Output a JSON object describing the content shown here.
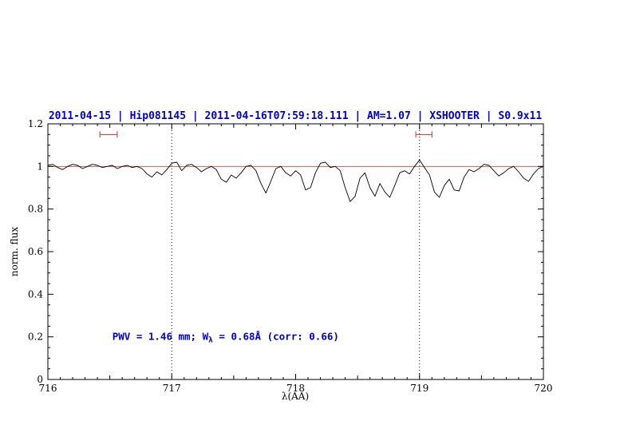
{
  "colors": {
    "background": "#ffffff",
    "title_blue": "#0000cc",
    "annotation_blue": "#0000cc",
    "spectrum_black": "#000000",
    "reference_red": "#cc4444",
    "marker_red": "#cc3333",
    "axis_black": "#000000"
  },
  "chart_data": {
    "type": "line",
    "title": "2011-04-15 | Hip081145 | 2011-04-16T07:59:18.111 | AM=1.07 | XSHOOTER | S0.9x11",
    "xlabel": "λ(AA)",
    "ylabel": "norm. flux",
    "xlim": [
      716,
      720
    ],
    "ylim": [
      0,
      1.2
    ],
    "x_ticks": [
      716,
      717,
      718,
      719,
      720
    ],
    "x_tick_labels": [
      "716",
      "717",
      "718",
      "719",
      "720"
    ],
    "x_minor_step": 0.1,
    "y_ticks": [
      0,
      0.2,
      0.4,
      0.6,
      0.8,
      1,
      1.2
    ],
    "y_tick_labels": [
      "0",
      "0.2",
      "0.4",
      "0.6",
      "0.8",
      "1",
      "1.2"
    ],
    "y_minor_step": 0.05,
    "grid": "off",
    "dotted_vlines": [
      717,
      719
    ],
    "reference_hline": 1.0,
    "series": [
      {
        "name": "normalized spectrum",
        "color": "#000000",
        "x_start": 716.0,
        "x_step": 0.04,
        "y": [
          1.005,
          1.01,
          0.995,
          0.985,
          1.0,
          1.01,
          1.005,
          0.99,
          1.0,
          1.01,
          1.005,
          0.995,
          1.0,
          1.005,
          0.99,
          1.0,
          1.005,
          0.995,
          1.0,
          0.99,
          0.965,
          0.95,
          0.975,
          0.96,
          0.985,
          1.015,
          1.02,
          0.98,
          1.005,
          1.01,
          0.995,
          0.975,
          0.99,
          1.0,
          0.985,
          0.94,
          0.925,
          0.96,
          0.945,
          0.97,
          1.0,
          1.005,
          0.98,
          0.92,
          0.875,
          0.93,
          0.99,
          1.0,
          0.97,
          0.955,
          0.98,
          0.96,
          0.89,
          0.9,
          0.97,
          1.015,
          1.02,
          0.995,
          1.0,
          0.98,
          0.9,
          0.835,
          0.86,
          0.945,
          0.97,
          0.9,
          0.86,
          0.92,
          0.88,
          0.855,
          0.91,
          0.97,
          0.98,
          0.965,
          1.0,
          1.03,
          0.995,
          0.96,
          0.88,
          0.855,
          0.91,
          0.94,
          0.89,
          0.885,
          0.95,
          0.985,
          0.975,
          0.99,
          1.01,
          1.005,
          0.98,
          0.955,
          0.97,
          0.99,
          1.0,
          0.975,
          0.945,
          0.93,
          0.965,
          0.99,
          1.0
        ]
      }
    ],
    "range_markers": [
      {
        "x1": 716.42,
        "x2": 716.56,
        "y": 1.15
      },
      {
        "x1": 718.97,
        "x2": 719.1,
        "y": 1.15
      }
    ],
    "annotation": {
      "x": 716.52,
      "y": 0.2,
      "text_prefix": "PWV  =  1.46  mm; W",
      "text_sub": "λ",
      "text_suffix": "  =  0.68Å  (corr: 0.66)",
      "full_text": "PWV = 1.46 mm; Wλ = 0.68Å (corr: 0.66)"
    },
    "legend": "none"
  }
}
